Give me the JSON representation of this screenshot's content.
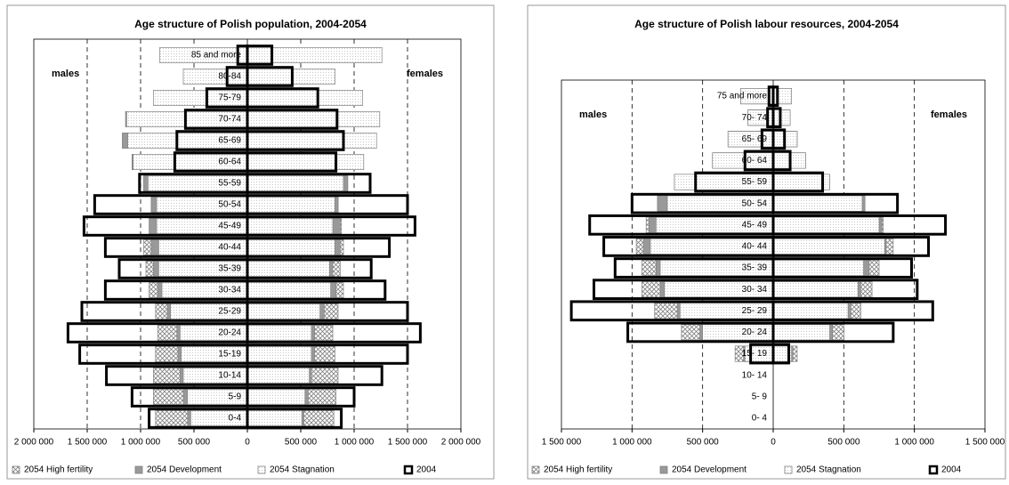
{
  "chart_data": [
    {
      "type": "pyramid",
      "title": "Age structure of Polish population, 2004-2054",
      "side_labels": [
        "males",
        "females"
      ],
      "categories": [
        "85 and more",
        "80-84",
        "75-79",
        "70-74",
        "65-69",
        "60-64",
        "55-59",
        "50-54",
        "45-49",
        "40-44",
        "35-39",
        "30-34",
        "25-29",
        "20-24",
        "15-19",
        "10-14",
        "5-9",
        "0-4"
      ],
      "xlim": [
        -2000000,
        2000000
      ],
      "xticks": [
        {
          "value": -2000000,
          "label": "2 000 000"
        },
        {
          "value": -1500000,
          "label": "1 500 000"
        },
        {
          "value": -1000000,
          "label": "1 000 000"
        },
        {
          "value": -500000,
          "label": "500 000"
        },
        0,
        {
          "value": 500000,
          "label": "500 000"
        },
        {
          "value": 1000000,
          "label": "1 000 000"
        },
        {
          "value": 1500000,
          "label": "1 500 000"
        },
        {
          "value": 2000000,
          "label": "2 000 000"
        }
      ],
      "grid": true,
      "series": [
        {
          "name": "2054 High fertility",
          "color": "#808080",
          "style": "hatched",
          "males": [
            -800000,
            -590000,
            -870000,
            -1140000,
            -1170000,
            -1080000,
            -970000,
            -900000,
            -900000,
            -970000,
            -950000,
            -920000,
            -860000,
            -840000,
            -860000,
            -880000,
            -880000,
            -860000
          ],
          "females": [
            1240000,
            810000,
            1060000,
            1220000,
            1200000,
            1070000,
            940000,
            850000,
            880000,
            900000,
            870000,
            900000,
            850000,
            800000,
            820000,
            850000,
            830000,
            810000
          ]
        },
        {
          "name": "2054 Development",
          "color": "#999999",
          "style": "solid",
          "males": [
            -800000,
            -590000,
            -870000,
            -1140000,
            -1170000,
            -1080000,
            -970000,
            -900000,
            -920000,
            -900000,
            -880000,
            -840000,
            -750000,
            -660000,
            -650000,
            -630000,
            -600000,
            -560000
          ],
          "females": [
            1240000,
            810000,
            1060000,
            1220000,
            1200000,
            1070000,
            940000,
            850000,
            870000,
            870000,
            800000,
            830000,
            720000,
            630000,
            630000,
            600000,
            570000,
            530000
          ]
        },
        {
          "name": "2054 Stagnation",
          "color": "#c8c8c8",
          "style": "dotted",
          "males": [
            -820000,
            -600000,
            -880000,
            -1130000,
            -1120000,
            -1070000,
            -930000,
            -850000,
            -850000,
            -830000,
            -830000,
            -800000,
            -720000,
            -630000,
            -620000,
            -600000,
            -560000,
            -530000
          ],
          "females": [
            1260000,
            820000,
            1080000,
            1240000,
            1210000,
            1090000,
            900000,
            820000,
            800000,
            820000,
            770000,
            780000,
            680000,
            600000,
            600000,
            580000,
            540000,
            510000
          ]
        },
        {
          "name": "2004",
          "color": "#000000",
          "style": "outline",
          "males": [
            -90000,
            -190000,
            -380000,
            -580000,
            -660000,
            -680000,
            -1010000,
            -1430000,
            -1530000,
            -1330000,
            -1200000,
            -1330000,
            -1550000,
            -1680000,
            -1570000,
            -1320000,
            -1080000,
            -920000
          ],
          "females": [
            230000,
            420000,
            660000,
            840000,
            900000,
            830000,
            1150000,
            1500000,
            1570000,
            1330000,
            1160000,
            1290000,
            1500000,
            1620000,
            1500000,
            1260000,
            1000000,
            880000
          ]
        }
      ]
    },
    {
      "type": "pyramid",
      "title": "Age structure of Polish labour resources, 2004-2054",
      "side_labels": [
        "males",
        "females"
      ],
      "categories": [
        "75 and more",
        "70- 74",
        "65- 69",
        "60- 64",
        "55- 59",
        "50- 54",
        "45- 49",
        "40- 44",
        "35- 39",
        "30- 34",
        "25- 29",
        "20- 24",
        "15- 19",
        "10- 14",
        "5- 9",
        "0- 4"
      ],
      "xlim": [
        -1500000,
        1500000
      ],
      "xticks": [
        {
          "value": -1500000,
          "label": "1 500 000"
        },
        {
          "value": -1000000,
          "label": "1 000 000"
        },
        {
          "value": -500000,
          "label": "500 000"
        },
        0,
        {
          "value": 500000,
          "label": "500 000"
        },
        {
          "value": 1000000,
          "label": "1 000 000"
        },
        {
          "value": 1500000,
          "label": "1 500 000"
        }
      ],
      "grid": true,
      "series": [
        {
          "name": "2054 High fertility",
          "color": "#808080",
          "style": "hatched",
          "males": [
            -230000,
            -180000,
            -320000,
            -430000,
            -700000,
            -820000,
            -900000,
            -970000,
            -930000,
            -930000,
            -840000,
            -650000,
            -270000,
            0,
            0,
            0
          ],
          "females": [
            130000,
            120000,
            170000,
            230000,
            400000,
            650000,
            780000,
            850000,
            750000,
            700000,
            620000,
            500000,
            170000,
            0,
            0,
            0
          ]
        },
        {
          "name": "2054 Development",
          "color": "#999999",
          "style": "solid",
          "males": [
            -200000,
            -170000,
            -310000,
            -420000,
            -650000,
            -820000,
            -880000,
            -920000,
            -830000,
            -800000,
            -680000,
            -520000,
            -210000,
            0,
            0,
            0
          ],
          "females": [
            120000,
            110000,
            160000,
            220000,
            370000,
            650000,
            770000,
            800000,
            680000,
            620000,
            550000,
            420000,
            140000,
            0,
            0,
            0
          ]
        },
        {
          "name": "2054 Stagnation",
          "color": "#c8c8c8",
          "style": "dotted",
          "males": [
            -230000,
            -180000,
            -320000,
            -430000,
            -700000,
            -750000,
            -830000,
            -870000,
            -800000,
            -770000,
            -660000,
            -500000,
            -200000,
            0,
            0,
            0
          ],
          "females": [
            130000,
            120000,
            170000,
            230000,
            400000,
            630000,
            750000,
            790000,
            640000,
            600000,
            530000,
            400000,
            130000,
            0,
            0,
            0
          ]
        },
        {
          "name": "2004",
          "color": "#000000",
          "style": "outline",
          "males": [
            -30000,
            -40000,
            -80000,
            -200000,
            -550000,
            -1000000,
            -1300000,
            -1200000,
            -1120000,
            -1270000,
            -1430000,
            -1030000,
            -160000,
            0,
            0,
            0
          ],
          "females": [
            30000,
            50000,
            80000,
            120000,
            350000,
            880000,
            1220000,
            1100000,
            980000,
            1020000,
            1130000,
            850000,
            110000,
            0,
            0,
            0
          ]
        }
      ]
    }
  ]
}
